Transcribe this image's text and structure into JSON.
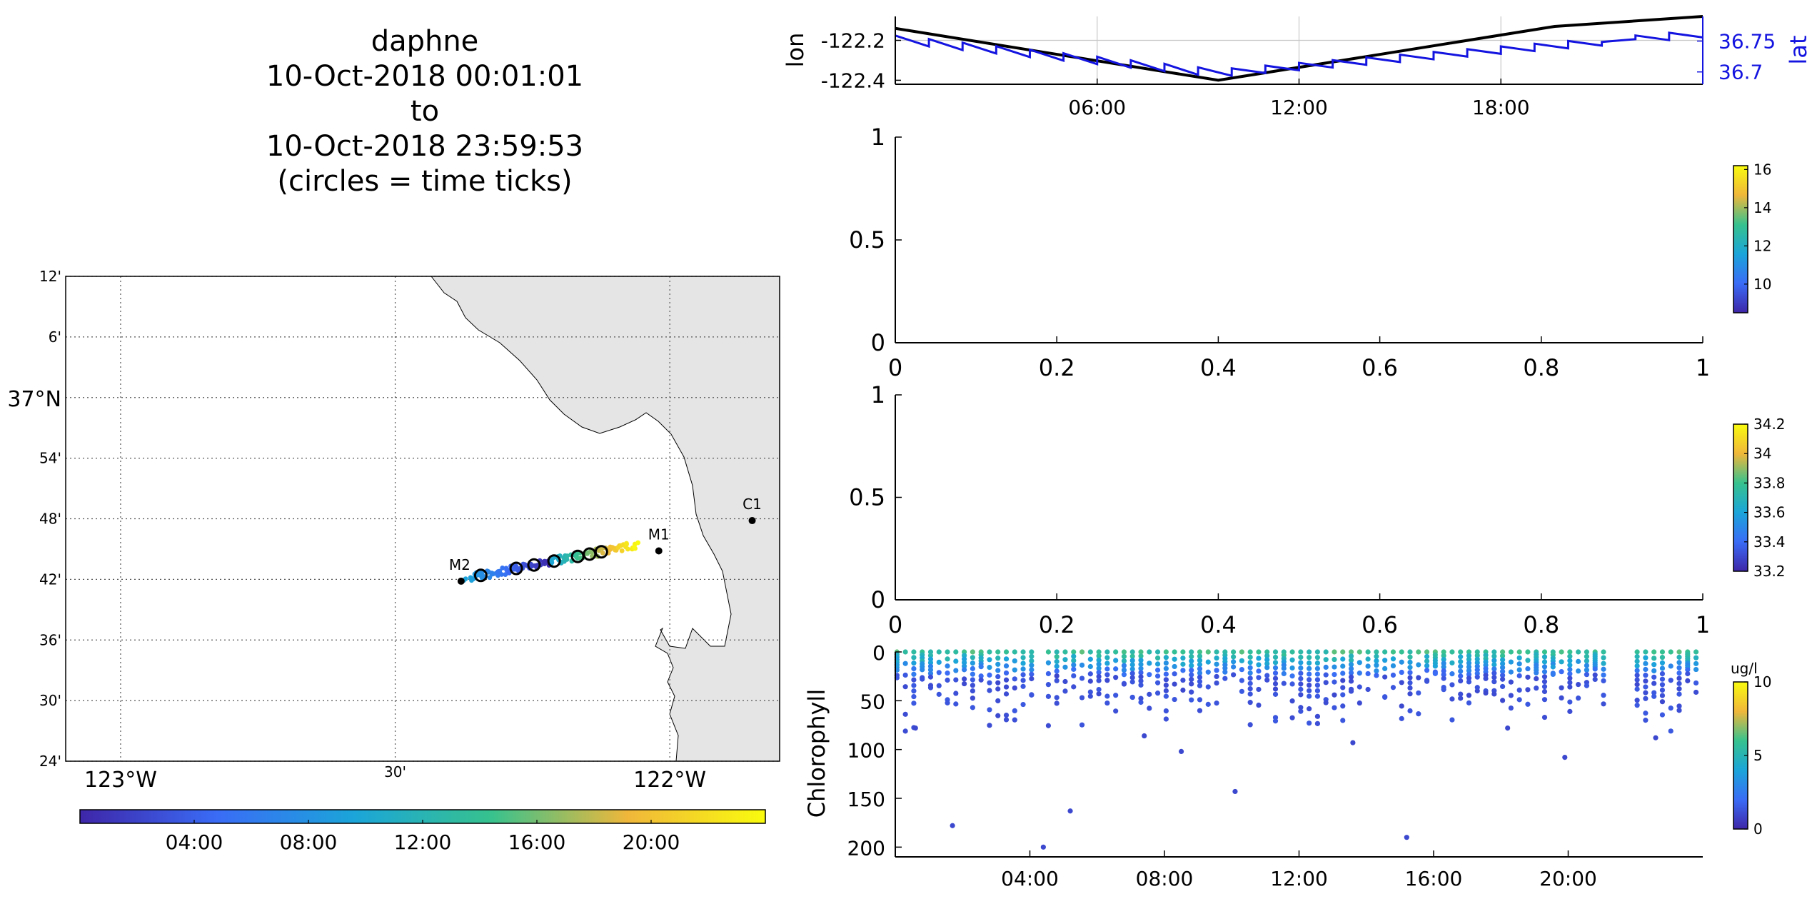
{
  "title": {
    "lines": [
      "daphne",
      "10-Oct-2018 00:01:01",
      "to",
      "10-Oct-2018 23:59:53",
      "(circles = time ticks)"
    ]
  },
  "chart_data": [
    {
      "type": "line",
      "panel": "position-vs-time",
      "xlabel": "",
      "x_ticks": [
        "06:00",
        "12:00",
        "18:00"
      ],
      "x_range": [
        "00:00",
        "24:00"
      ],
      "y_left": {
        "label": "lon",
        "range": [
          -122.42,
          -122.08
        ],
        "ticks": [
          -122.2,
          -122.4
        ],
        "tick_labels": [
          "-122.2",
          "-122.4"
        ]
      },
      "y_right": {
        "label": "lat",
        "range": [
          36.68,
          36.79
        ],
        "ticks": [
          36.75,
          36.7
        ],
        "tick_labels": [
          "36.75",
          "36.7"
        ]
      },
      "colors": {
        "lon": "#000000",
        "lat": "#1414e0"
      },
      "series": [
        {
          "name": "lon",
          "axis": "left",
          "hours": [
            0,
            9.6,
            19.6,
            24
          ],
          "values": [
            -122.14,
            -122.4,
            -122.13,
            -122.08
          ]
        },
        {
          "name": "lat",
          "axis": "right",
          "hours": [
            0,
            9.6,
            24
          ],
          "values": [
            36.753,
            36.698,
            36.762
          ],
          "sawtooth_amplitude": 0.012,
          "sawtooth_period_hours": 1
        }
      ]
    },
    {
      "type": "scatter",
      "panel": "empty-1",
      "x_ticks": [
        "0",
        "0.2",
        "0.4",
        "0.6",
        "0.8",
        "1"
      ],
      "y_ticks": [
        "0",
        "0.5",
        "1"
      ],
      "x_range": [
        0,
        1
      ],
      "y_range": [
        0,
        1
      ],
      "colorbar": {
        "ticks": [
          "10",
          "12",
          "14",
          "16"
        ],
        "range": [
          8.5,
          16.2
        ]
      }
    },
    {
      "type": "scatter",
      "panel": "empty-2",
      "x_ticks": [
        "0",
        "0.2",
        "0.4",
        "0.6",
        "0.8",
        "1"
      ],
      "y_ticks": [
        "0",
        "0.5",
        "1"
      ],
      "x_range": [
        0,
        1
      ],
      "y_range": [
        0,
        1
      ],
      "colorbar": {
        "ticks": [
          "33.2",
          "33.4",
          "33.6",
          "33.8",
          "34",
          "34.2"
        ],
        "range": [
          33.2,
          34.2
        ]
      }
    },
    {
      "type": "scatter",
      "panel": "chlorophyll",
      "ylabel": "Chlorophyll",
      "x_ticks": [
        "04:00",
        "08:00",
        "12:00",
        "16:00",
        "20:00"
      ],
      "x_range": [
        "00:00",
        "24:00"
      ],
      "y_ticks": [
        "0",
        "50",
        "100",
        "150",
        "200"
      ],
      "y_range": [
        0,
        210
      ],
      "y_reversed": true,
      "colorbar": {
        "label": "ug/l",
        "ticks": [
          "0",
          "5",
          "10"
        ],
        "range": [
          0,
          10
        ]
      },
      "gaps_hours": [
        [
          4.3,
          4.5
        ],
        [
          21.1,
          21.8
        ]
      ],
      "profile_interval_hours": 0.25,
      "max_depth_typical": 60,
      "outliers": [
        {
          "hour": 1.7,
          "depth": 178
        },
        {
          "hour": 4.4,
          "depth": 200
        },
        {
          "hour": 5.2,
          "depth": 163
        },
        {
          "hour": 8.5,
          "depth": 102
        },
        {
          "hour": 10.1,
          "depth": 143
        },
        {
          "hour": 15.2,
          "depth": 190
        },
        {
          "hour": 0.6,
          "depth": 78
        },
        {
          "hour": 7.4,
          "depth": 86
        },
        {
          "hour": 13.6,
          "depth": 93
        },
        {
          "hour": 19.9,
          "depth": 108
        },
        {
          "hour": 22.6,
          "depth": 88
        },
        {
          "hour": 18.2,
          "depth": 78
        }
      ]
    },
    {
      "type": "scatter",
      "panel": "track-map",
      "lon_range": [
        -123.1,
        -121.8
      ],
      "lat_range": [
        36.4,
        37.2
      ],
      "lat_tick_labels": [
        "12'",
        "6'",
        "37°N",
        "54'",
        "48'",
        "42'",
        "36'",
        "30'",
        "24'"
      ],
      "lat_ticks": [
        37.2,
        37.1,
        37.0,
        36.9,
        36.8,
        36.7,
        36.6,
        36.5,
        36.4
      ],
      "lon_tick_labels": [
        "123°W",
        "30'",
        "122°W"
      ],
      "lon_ticks": [
        -123.0,
        -122.5,
        -122.0
      ],
      "land_color": "#e5e5e5",
      "stations": [
        {
          "name": "M2",
          "lon": -122.38,
          "lat": 36.697
        },
        {
          "name": "M1",
          "lon": -122.02,
          "lat": 36.747
        },
        {
          "name": "C1",
          "lon": -121.85,
          "lat": 36.797
        }
      ],
      "track_start": {
        "lon": -122.37,
        "lat": 36.702
      },
      "track_end": {
        "lon": -122.06,
        "lat": 36.757
      },
      "time_circles_hours": [
        2,
        4,
        8,
        10,
        14,
        16,
        18
      ],
      "colorbar": {
        "ticks": [
          "04:00",
          "08:00",
          "12:00",
          "16:00",
          "20:00"
        ],
        "range_hours": [
          0,
          24
        ]
      }
    }
  ],
  "labels": {
    "lon_axis": "lon",
    "lat_axis": "lat",
    "chl_axis": "Chlorophyll",
    "chl_units": "ug/l",
    "station_m2": "M2",
    "station_m1": "M1",
    "station_c1": "C1"
  }
}
